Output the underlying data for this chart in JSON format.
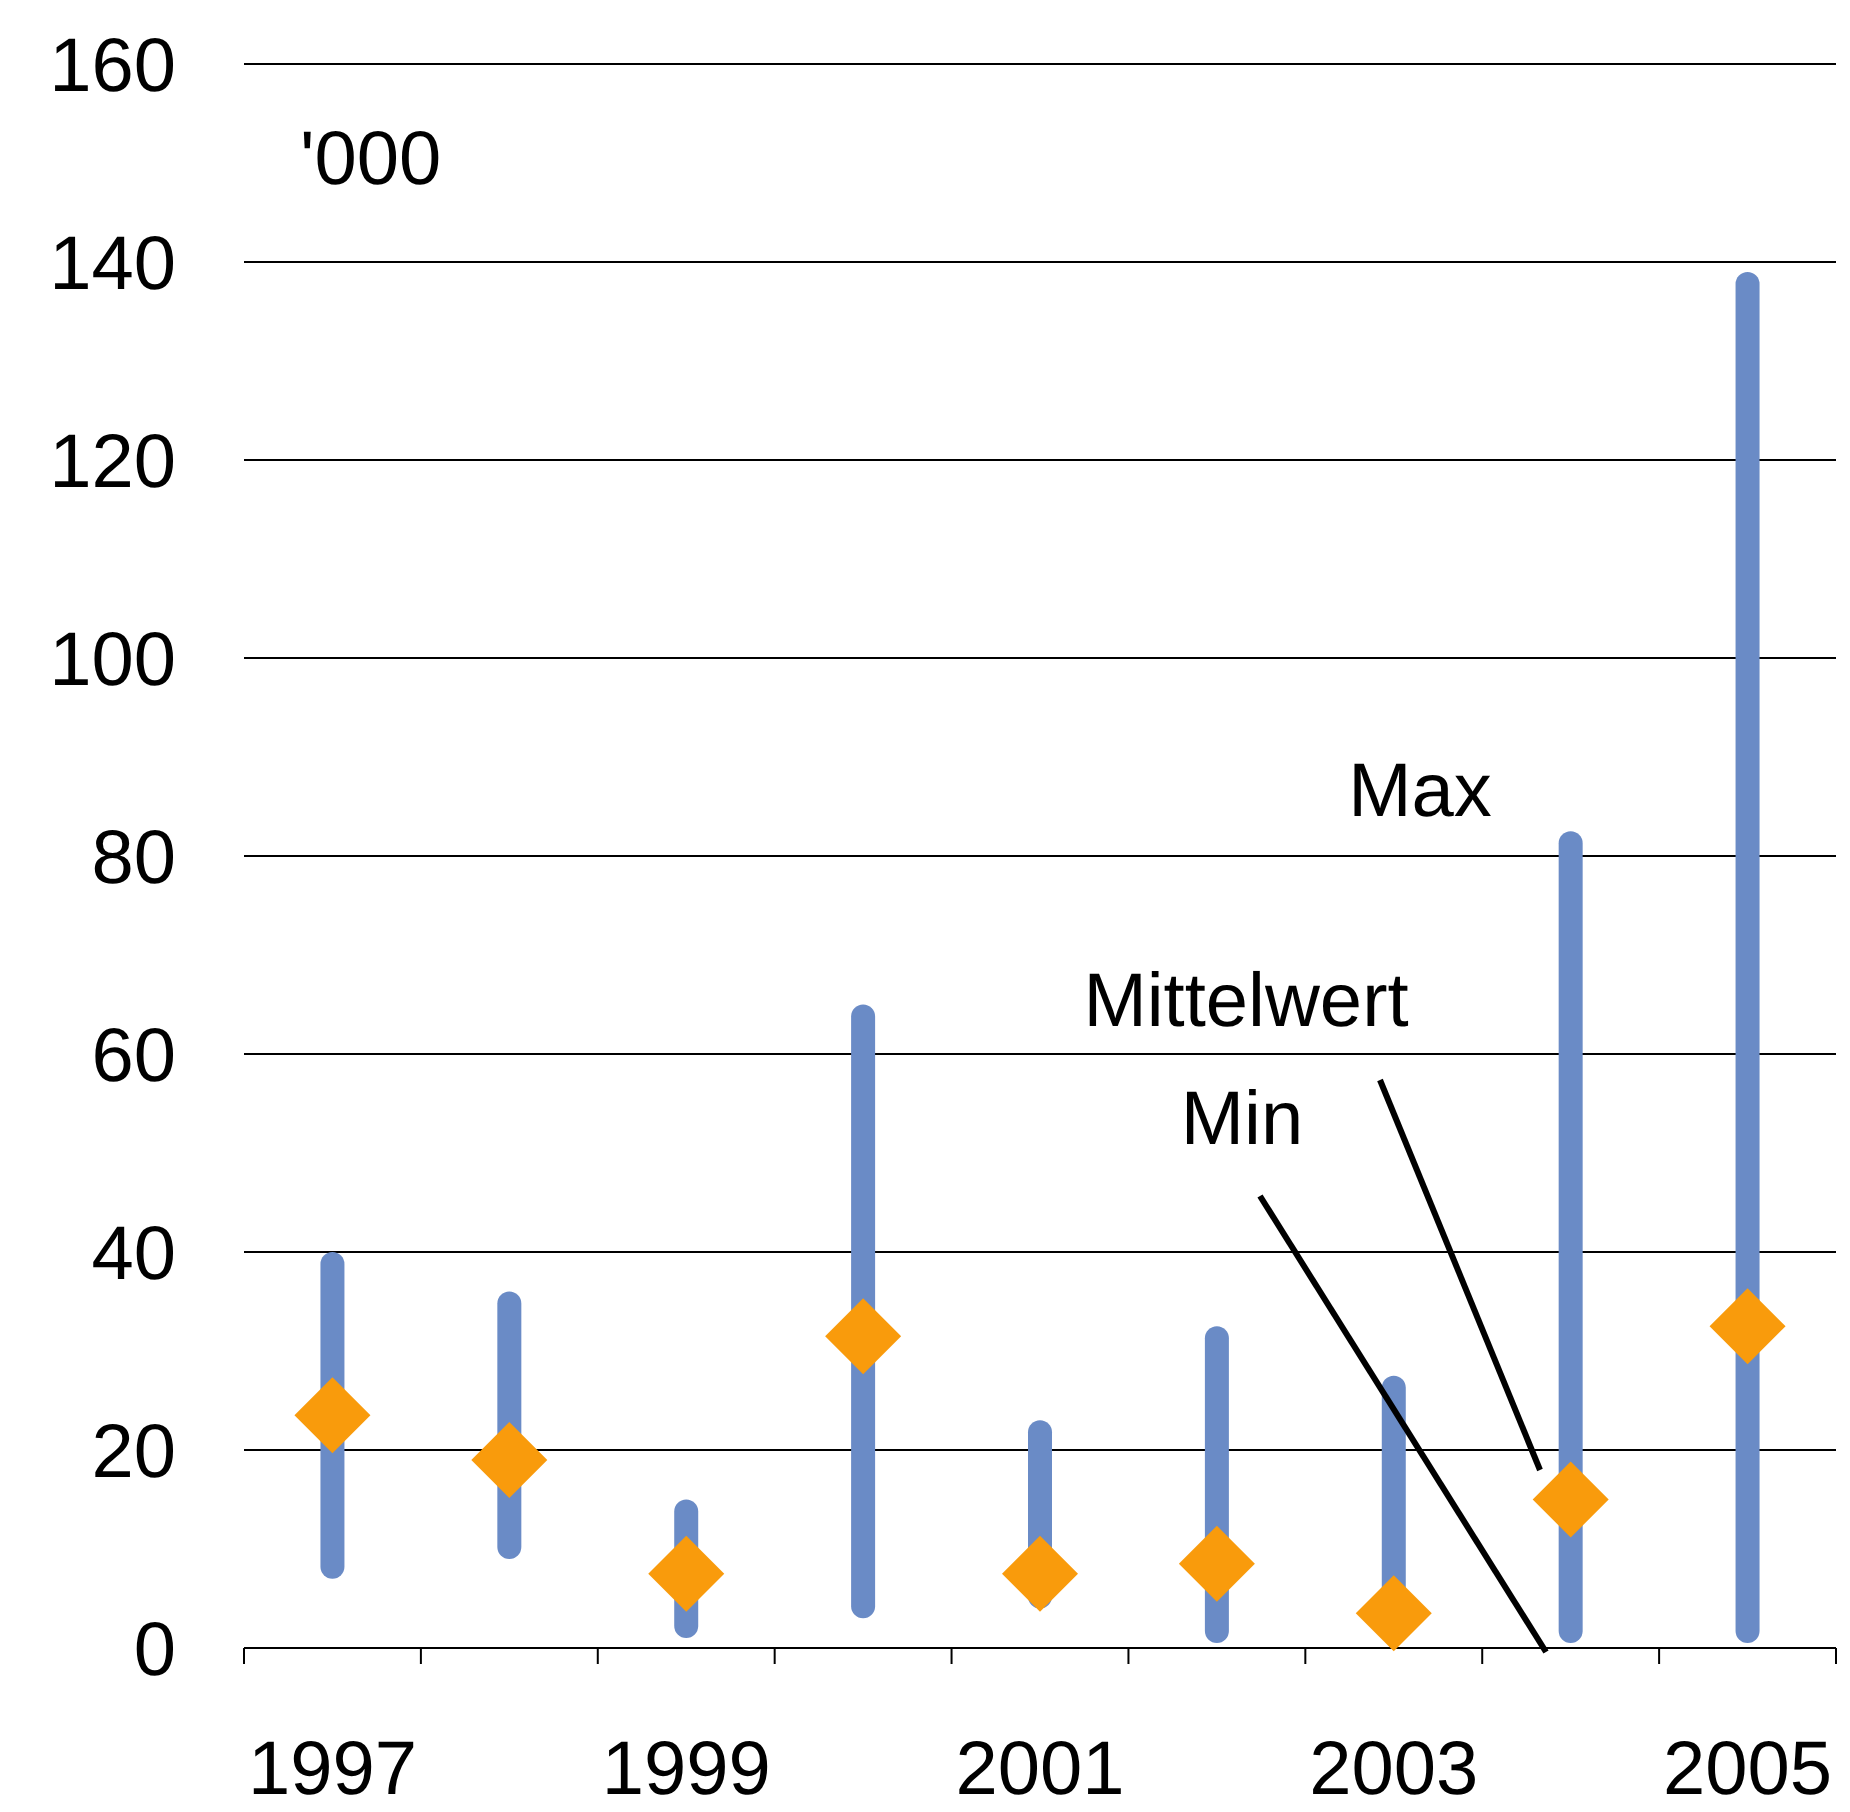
{
  "chart_data": {
    "type": "bar",
    "categories": [
      "1997",
      null,
      "1999",
      null,
      "2001",
      null,
      "2003",
      null,
      "2005"
    ],
    "series": [
      {
        "type": "bar",
        "color": "#6a8bc6",
        "values": [
          33,
          27,
          14,
          62,
          19,
          32,
          27,
          82,
          138.5
        ],
        "base": [
          7,
          9,
          1,
          3,
          4,
          0.5,
          0.5,
          0.5,
          0.5
        ]
      },
      {
        "type": "scatter",
        "color": "#f99b0c",
        "marker": "diamond",
        "values": [
          23.5,
          19,
          7.5,
          31.5,
          7.5,
          8.5,
          3.5,
          15,
          32.5
        ]
      }
    ],
    "ylim": [
      0,
      160
    ],
    "yticks": [
      0,
      20,
      40,
      60,
      80,
      100,
      120,
      140,
      160
    ],
    "grid": "y",
    "annotations": [
      "'000",
      "Max",
      "Mittelwert",
      "Min"
    ]
  }
}
